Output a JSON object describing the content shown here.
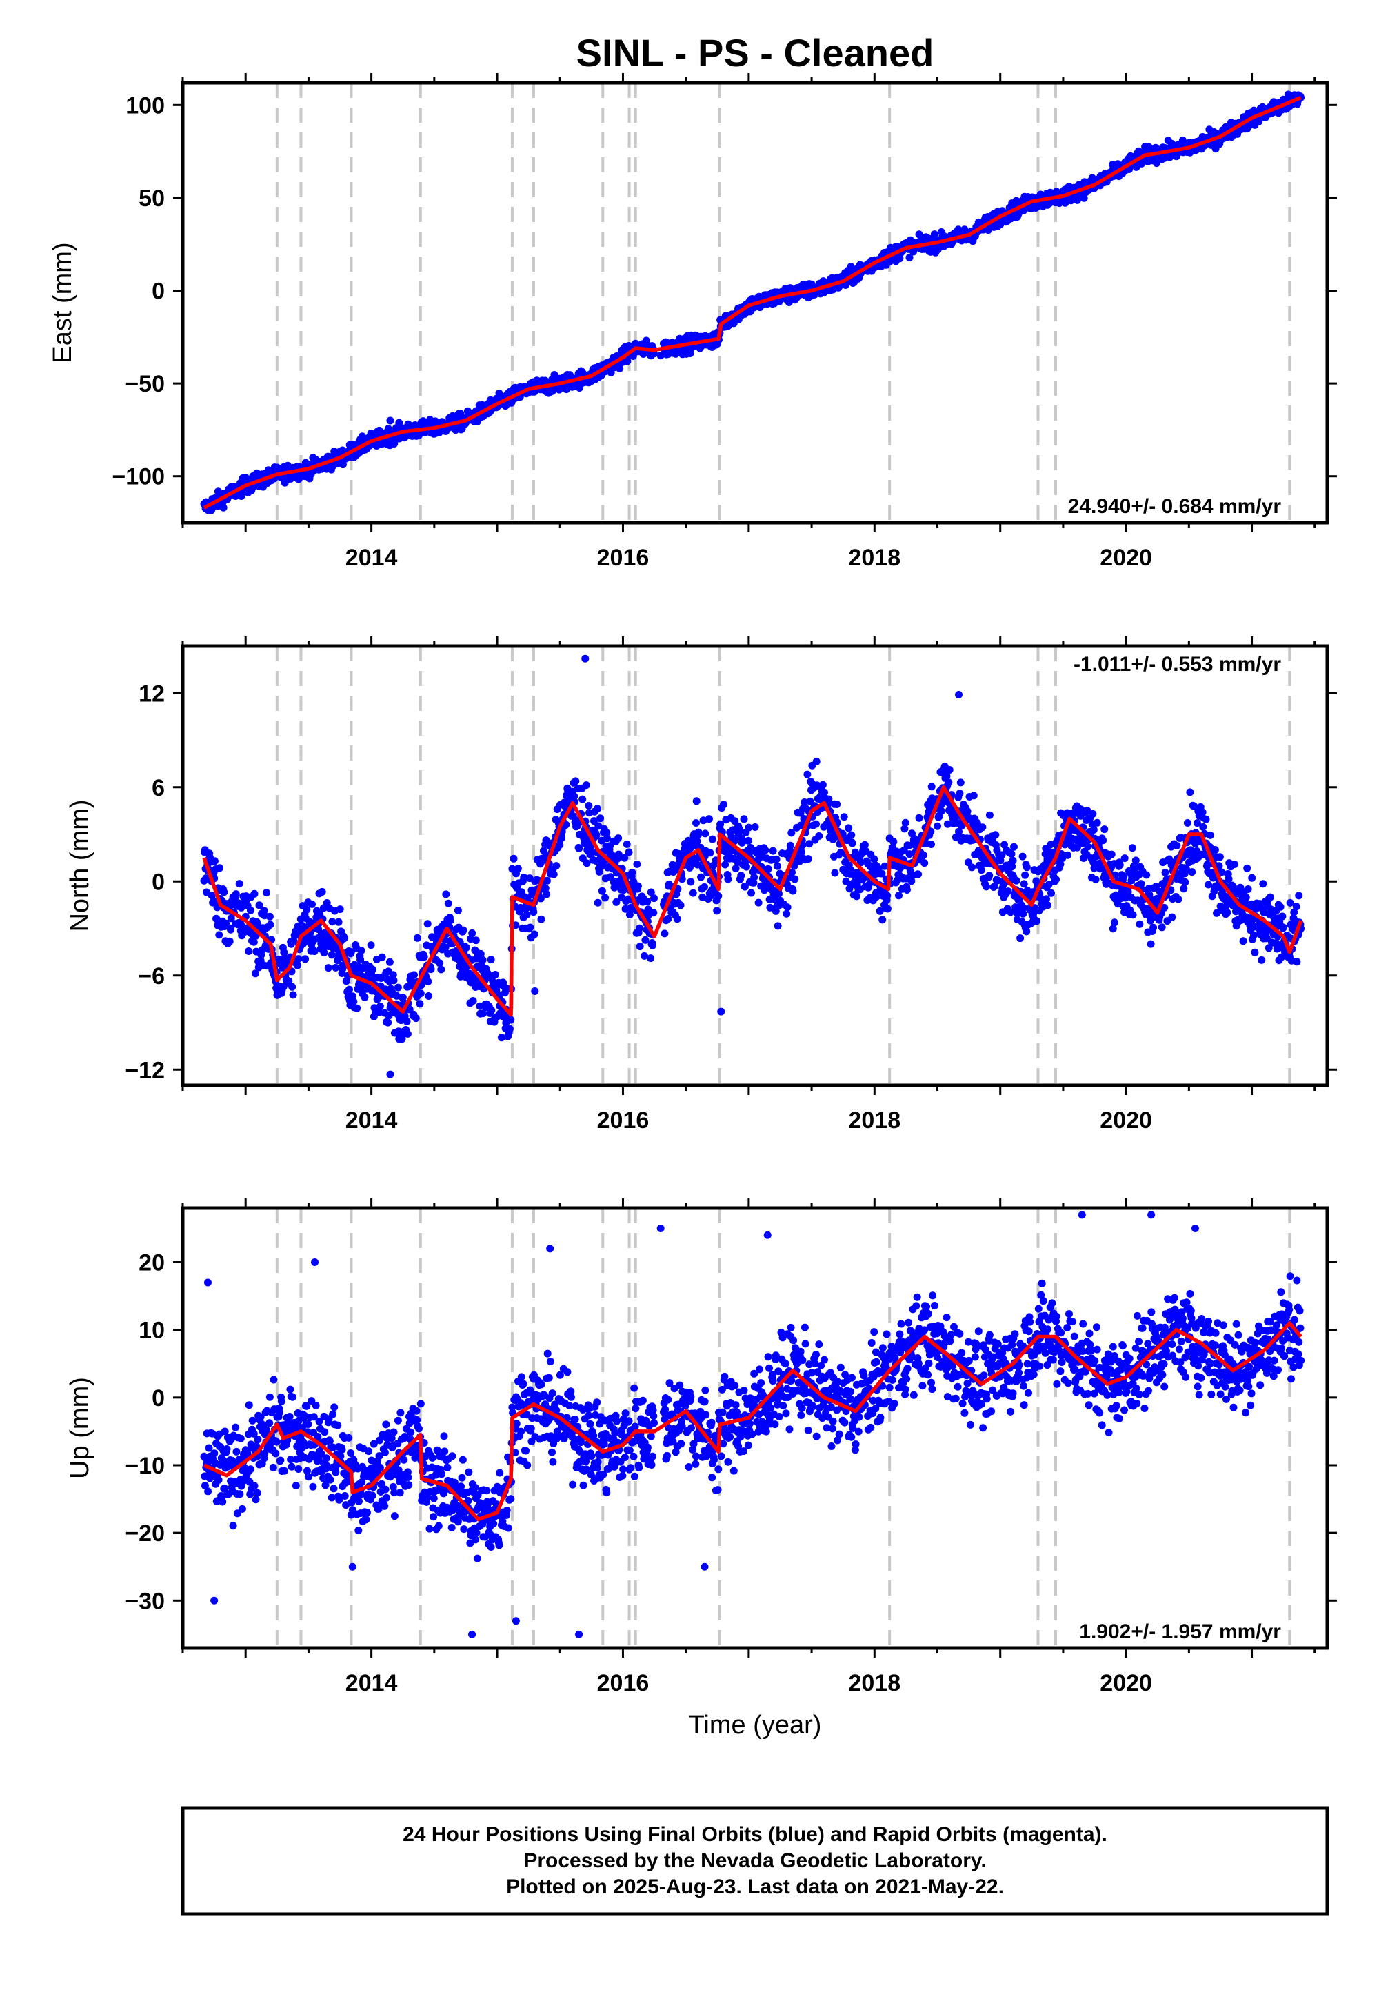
{
  "title": "SINL  - PS - Cleaned",
  "colors": {
    "points": "#0000ff",
    "model": "#ff0000",
    "steps": "#c8c8c8",
    "frame": "#000000"
  },
  "chart_data": [
    {
      "type": "scatter",
      "component": "East",
      "ylabel": "East (mm)",
      "xlabel": "",
      "xlim": [
        2012.5,
        2021.6
      ],
      "ylim": [
        -125,
        112
      ],
      "x_ticks": [
        2014,
        2016,
        2018,
        2020
      ],
      "y_ticks": [
        -100,
        -50,
        0,
        50,
        100
      ],
      "rate_label": "24.940+/- 0.684 mm/yr",
      "step_lines": [
        2013.25,
        2013.44,
        2013.84,
        2014.39,
        2015.12,
        2015.29,
        2015.84,
        2016.05,
        2016.1,
        2016.77,
        2018.12,
        2019.3,
        2019.44,
        2021.3
      ],
      "model": [
        [
          2012.67,
          -117
        ],
        [
          2013.0,
          -105
        ],
        [
          2013.25,
          -99
        ],
        [
          2013.5,
          -96
        ],
        [
          2013.75,
          -90
        ],
        [
          2014.0,
          -81
        ],
        [
          2014.25,
          -76
        ],
        [
          2014.5,
          -74
        ],
        [
          2014.75,
          -70
        ],
        [
          2015.0,
          -61
        ],
        [
          2015.25,
          -53
        ],
        [
          2015.5,
          -50
        ],
        [
          2015.75,
          -46
        ],
        [
          2016.0,
          -36
        ],
        [
          2016.1,
          -31
        ],
        [
          2016.25,
          -32
        ],
        [
          2016.5,
          -29
        ],
        [
          2016.76,
          -26
        ],
        [
          2016.78,
          -18
        ],
        [
          2017.0,
          -8
        ],
        [
          2017.25,
          -3
        ],
        [
          2017.5,
          0
        ],
        [
          2017.75,
          5
        ],
        [
          2018.0,
          15
        ],
        [
          2018.25,
          23
        ],
        [
          2018.5,
          26
        ],
        [
          2018.75,
          30
        ],
        [
          2019.0,
          40
        ],
        [
          2019.25,
          48
        ],
        [
          2019.5,
          51
        ],
        [
          2019.75,
          57
        ],
        [
          2020.0,
          67
        ],
        [
          2020.15,
          73
        ],
        [
          2020.25,
          74
        ],
        [
          2020.5,
          77
        ],
        [
          2020.75,
          83
        ],
        [
          2021.0,
          93
        ],
        [
          2021.25,
          100
        ],
        [
          2021.39,
          104
        ]
      ],
      "scatter_amplitude": 3.0,
      "outliers": [
        [
          2013.0,
          -108
        ],
        [
          2014.15,
          -70
        ],
        [
          2016.3,
          -35
        ],
        [
          2018.9,
          38
        ]
      ]
    },
    {
      "type": "scatter",
      "component": "North",
      "ylabel": "North (mm)",
      "xlabel": "",
      "xlim": [
        2012.5,
        2021.6
      ],
      "ylim": [
        -13,
        15
      ],
      "x_ticks": [
        2014,
        2016,
        2018,
        2020
      ],
      "y_ticks": [
        -12,
        -6,
        0,
        6,
        12
      ],
      "rate_label": "-1.011+/- 0.553 mm/yr",
      "step_lines": [
        2013.25,
        2013.44,
        2013.84,
        2014.39,
        2015.12,
        2015.29,
        2015.84,
        2016.05,
        2016.1,
        2016.77,
        2018.12,
        2019.3,
        2019.44,
        2021.3
      ],
      "model": [
        [
          2012.67,
          1.5
        ],
        [
          2012.8,
          -1.5
        ],
        [
          2013.0,
          -2.5
        ],
        [
          2013.2,
          -4.0
        ],
        [
          2013.25,
          -6.3
        ],
        [
          2013.35,
          -5.5
        ],
        [
          2013.44,
          -3.5
        ],
        [
          2013.6,
          -2.5
        ],
        [
          2013.75,
          -4.0
        ],
        [
          2013.84,
          -6.0
        ],
        [
          2014.0,
          -6.5
        ],
        [
          2014.25,
          -8.3
        ],
        [
          2014.5,
          -4.5
        ],
        [
          2014.6,
          -3.0
        ],
        [
          2014.8,
          -5.5
        ],
        [
          2015.0,
          -7.5
        ],
        [
          2015.11,
          -8.5
        ],
        [
          2015.12,
          -1.0
        ],
        [
          2015.29,
          -1.5
        ],
        [
          2015.5,
          3.5
        ],
        [
          2015.6,
          5.0
        ],
        [
          2015.8,
          2.0
        ],
        [
          2016.0,
          0.5
        ],
        [
          2016.1,
          -1.5
        ],
        [
          2016.25,
          -3.5
        ],
        [
          2016.5,
          1.5
        ],
        [
          2016.6,
          2.0
        ],
        [
          2016.76,
          -0.5
        ],
        [
          2016.77,
          3.0
        ],
        [
          2017.0,
          1.5
        ],
        [
          2017.25,
          -0.5
        ],
        [
          2017.5,
          4.5
        ],
        [
          2017.6,
          5.0
        ],
        [
          2017.8,
          1.5
        ],
        [
          2018.0,
          0.0
        ],
        [
          2018.11,
          -0.5
        ],
        [
          2018.12,
          1.5
        ],
        [
          2018.3,
          1.0
        ],
        [
          2018.55,
          6.0
        ],
        [
          2018.7,
          4.0
        ],
        [
          2019.0,
          0.5
        ],
        [
          2019.25,
          -1.5
        ],
        [
          2019.3,
          -0.5
        ],
        [
          2019.44,
          1.5
        ],
        [
          2019.55,
          4.0
        ],
        [
          2019.75,
          2.5
        ],
        [
          2019.9,
          0.0
        ],
        [
          2020.1,
          -0.5
        ],
        [
          2020.25,
          -2.0
        ],
        [
          2020.5,
          3.0
        ],
        [
          2020.6,
          3.0
        ],
        [
          2020.75,
          0.0
        ],
        [
          2020.9,
          -1.5
        ],
        [
          2021.1,
          -2.5
        ],
        [
          2021.25,
          -3.5
        ],
        [
          2021.3,
          -4.5
        ],
        [
          2021.39,
          -2.5
        ]
      ],
      "scatter_amplitude": 1.6,
      "outliers": [
        [
          2015.7,
          14.2
        ],
        [
          2018.67,
          11.9
        ],
        [
          2016.78,
          -8.3
        ],
        [
          2014.15,
          -12.3
        ],
        [
          2015.3,
          -7.0
        ]
      ]
    },
    {
      "type": "scatter",
      "component": "Up",
      "ylabel": "Up (mm)",
      "xlabel": "Time (year)",
      "xlim": [
        2012.5,
        2021.6
      ],
      "ylim": [
        -37,
        28
      ],
      "x_ticks": [
        2014,
        2016,
        2018,
        2020
      ],
      "y_ticks": [
        -30,
        -20,
        -10,
        0,
        10,
        20
      ],
      "rate_label": "1.902+/- 1.957 mm/yr",
      "step_lines": [
        2013.25,
        2013.44,
        2013.84,
        2014.39,
        2015.12,
        2015.29,
        2015.84,
        2016.05,
        2016.1,
        2016.77,
        2018.12,
        2019.3,
        2019.44,
        2021.3
      ],
      "model": [
        [
          2012.67,
          -10
        ],
        [
          2012.85,
          -11.5
        ],
        [
          2013.1,
          -8
        ],
        [
          2013.25,
          -4
        ],
        [
          2013.3,
          -6
        ],
        [
          2013.44,
          -5
        ],
        [
          2013.6,
          -7
        ],
        [
          2013.84,
          -11
        ],
        [
          2013.85,
          -14
        ],
        [
          2014.0,
          -13
        ],
        [
          2014.25,
          -8
        ],
        [
          2014.39,
          -5.5
        ],
        [
          2014.4,
          -12
        ],
        [
          2014.6,
          -13
        ],
        [
          2014.85,
          -18
        ],
        [
          2015.0,
          -17
        ],
        [
          2015.11,
          -12
        ],
        [
          2015.12,
          -3
        ],
        [
          2015.29,
          -1
        ],
        [
          2015.5,
          -3
        ],
        [
          2015.84,
          -8
        ],
        [
          2016.0,
          -7
        ],
        [
          2016.1,
          -5
        ],
        [
          2016.25,
          -5
        ],
        [
          2016.5,
          -2
        ],
        [
          2016.76,
          -8
        ],
        [
          2016.77,
          -4
        ],
        [
          2017.0,
          -3
        ],
        [
          2017.35,
          4
        ],
        [
          2017.6,
          0
        ],
        [
          2017.85,
          -2
        ],
        [
          2018.12,
          4
        ],
        [
          2018.4,
          9
        ],
        [
          2018.6,
          6
        ],
        [
          2018.85,
          2
        ],
        [
          2019.1,
          5
        ],
        [
          2019.3,
          9
        ],
        [
          2019.44,
          9
        ],
        [
          2019.6,
          6
        ],
        [
          2019.85,
          2
        ],
        [
          2020.0,
          3
        ],
        [
          2020.4,
          10
        ],
        [
          2020.6,
          8
        ],
        [
          2020.85,
          4
        ],
        [
          2021.1,
          7
        ],
        [
          2021.3,
          11
        ],
        [
          2021.39,
          9
        ]
      ],
      "scatter_amplitude": 4.5,
      "outliers": [
        [
          2012.7,
          17
        ],
        [
          2013.55,
          20
        ],
        [
          2015.42,
          22
        ],
        [
          2016.3,
          25
        ],
        [
          2017.15,
          24
        ],
        [
          2019.65,
          27
        ],
        [
          2020.2,
          27
        ],
        [
          2020.55,
          25
        ],
        [
          2014.8,
          -35
        ],
        [
          2015.15,
          -33
        ],
        [
          2015.65,
          -35
        ],
        [
          2016.65,
          -25
        ],
        [
          2012.75,
          -30
        ],
        [
          2013.85,
          -25
        ]
      ]
    }
  ],
  "footer": {
    "line1": "24 Hour Positions Using Final Orbits (blue) and Rapid Orbits (magenta).",
    "line2": "Processed by the Nevada Geodetic Laboratory.",
    "line3": "Plotted on 2025-Aug-23. Last data on 2021-May-22."
  }
}
